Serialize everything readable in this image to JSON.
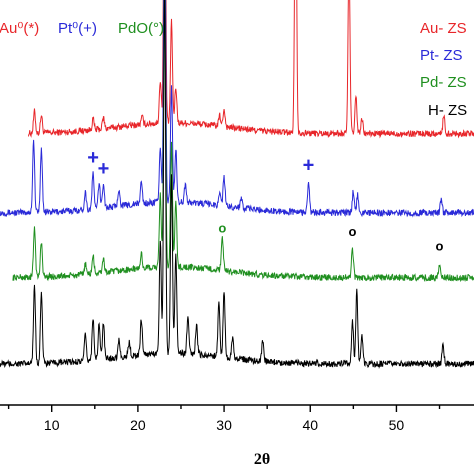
{
  "chart_data": {
    "type": "line",
    "title": "",
    "xlabel": "2θ",
    "ylabel": "",
    "xlim": [
      4,
      59
    ],
    "x_ticks": [
      10,
      20,
      30,
      40,
      50
    ],
    "grid": false,
    "legend_top": [
      {
        "text": "Au⁰(*)",
        "color": "#e8262a"
      },
      {
        "text": "Pt⁰(+)",
        "color": "#2a2ad8"
      },
      {
        "text": "PdO(°)",
        "color": "#1f8f1f"
      }
    ],
    "series": [
      {
        "name": "Au- ZS",
        "color": "#e8262a",
        "baseline": 0.74,
        "peaks": [
          [
            8.0,
            0.06
          ],
          [
            8.8,
            0.05
          ],
          [
            14.8,
            0.03
          ],
          [
            16.0,
            0.03
          ],
          [
            20.5,
            0.02
          ],
          [
            22.6,
            0.12
          ],
          [
            23.1,
            0.9
          ],
          [
            23.9,
            0.28
          ],
          [
            24.4,
            0.1
          ],
          [
            29.5,
            0.03
          ],
          [
            30.0,
            0.05
          ],
          [
            38.3,
            0.82
          ],
          [
            44.5,
            0.48
          ],
          [
            45.3,
            0.1
          ],
          [
            46.0,
            0.04
          ],
          [
            55.5,
            0.05
          ]
        ]
      },
      {
        "name": "Pt- ZS",
        "color": "#2a2ad8",
        "baseline": 0.52,
        "peaks": [
          [
            7.9,
            0.2
          ],
          [
            8.8,
            0.18
          ],
          [
            13.9,
            0.05
          ],
          [
            14.8,
            0.1
          ],
          [
            15.5,
            0.07
          ],
          [
            16.0,
            0.07
          ],
          [
            17.8,
            0.05
          ],
          [
            20.4,
            0.06
          ],
          [
            22.6,
            0.15
          ],
          [
            23.1,
            0.95
          ],
          [
            23.9,
            0.32
          ],
          [
            24.4,
            0.15
          ],
          [
            25.5,
            0.05
          ],
          [
            29.5,
            0.04
          ],
          [
            30.0,
            0.08
          ],
          [
            32.0,
            0.03
          ],
          [
            39.8,
            0.08
          ],
          [
            45.0,
            0.06
          ],
          [
            45.5,
            0.05
          ],
          [
            55.2,
            0.04
          ]
        ]
      },
      {
        "name": "Pd- ZS",
        "color": "#1f8f1f",
        "baseline": 0.34,
        "peaks": [
          [
            8.0,
            0.14
          ],
          [
            8.8,
            0.1
          ],
          [
            13.9,
            0.03
          ],
          [
            14.8,
            0.05
          ],
          [
            16.0,
            0.04
          ],
          [
            20.4,
            0.04
          ],
          [
            22.6,
            0.2
          ],
          [
            23.1,
            0.8
          ],
          [
            23.9,
            0.35
          ],
          [
            24.4,
            0.18
          ],
          [
            29.8,
            0.09
          ],
          [
            44.9,
            0.08
          ],
          [
            55.0,
            0.04
          ]
        ]
      },
      {
        "name": "H- ZS",
        "color": "#000000",
        "baseline": 0.1,
        "peaks": [
          [
            8.0,
            0.22
          ],
          [
            8.8,
            0.2
          ],
          [
            13.9,
            0.07
          ],
          [
            14.8,
            0.12
          ],
          [
            15.5,
            0.1
          ],
          [
            16.0,
            0.1
          ],
          [
            17.8,
            0.05
          ],
          [
            19.0,
            0.04
          ],
          [
            20.4,
            0.1
          ],
          [
            22.6,
            0.32
          ],
          [
            23.1,
            1.02
          ],
          [
            23.9,
            0.5
          ],
          [
            24.4,
            0.28
          ],
          [
            25.8,
            0.1
          ],
          [
            26.8,
            0.08
          ],
          [
            29.4,
            0.15
          ],
          [
            30.0,
            0.18
          ],
          [
            31.0,
            0.06
          ],
          [
            34.5,
            0.06
          ],
          [
            44.9,
            0.12
          ],
          [
            45.4,
            0.2
          ],
          [
            46.0,
            0.08
          ],
          [
            55.4,
            0.06
          ]
        ]
      }
    ],
    "annotations": [
      {
        "text": "*",
        "x": 38.3,
        "color": "#e8262a",
        "series": 0
      },
      {
        "text": "*",
        "x": 44.5,
        "color": "#e8262a",
        "series": 0
      },
      {
        "text": "+",
        "x": 14.8,
        "color": "#2a2ad8",
        "series": 1
      },
      {
        "text": "+",
        "x": 16.0,
        "color": "#2a2ad8",
        "series": 1
      },
      {
        "text": "+",
        "x": 39.8,
        "color": "#2a2ad8",
        "series": 1
      },
      {
        "text": "o",
        "x": 29.8,
        "color": "#1f8f1f",
        "series": 2
      },
      {
        "text": "o",
        "x": 44.9,
        "color": "#000000",
        "series": 2
      },
      {
        "text": "o",
        "x": 55.0,
        "color": "#000000",
        "series": 2
      }
    ]
  }
}
